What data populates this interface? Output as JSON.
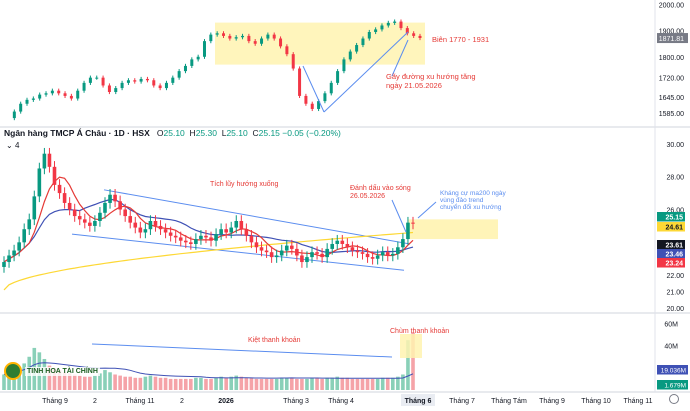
{
  "header": {
    "symbol": "Ngân hàng TMCP Á Châu · 1D · HSX",
    "o_label": "O",
    "o_value": "25.10",
    "h_label": "H",
    "h_value": "25.30",
    "l_label": "L",
    "l_value": "25.10",
    "c_label": "C",
    "c_value": "25.15",
    "change": "−0.05 (−0.20%)",
    "collapse_label": "4"
  },
  "logo": {
    "text": "TINH HOA TÀI CHÍNH"
  },
  "colors": {
    "up": "#089981",
    "down": "#f23645",
    "ma_short": "#e53935",
    "ma_mid": "#3f51b5",
    "ma_long": "#fdd835",
    "zone": "#fff3b0",
    "trend": "#5b8def"
  },
  "chart_data": [
    {
      "type": "line",
      "panel": "overview (VNINDEX)",
      "y_ticks": [
        "2000.00",
        "1900.00",
        "1871.81",
        "1800.00",
        "1720.00",
        "1645.00",
        "1585.00"
      ],
      "last_price": "1871.81",
      "ylim": [
        1550,
        2010
      ],
      "points": [
        1565,
        1590,
        1620,
        1635,
        1640,
        1655,
        1660,
        1670,
        1660,
        1650,
        1640,
        1670,
        1700,
        1720,
        1720,
        1690,
        1665,
        1680,
        1700,
        1710,
        1705,
        1715,
        1710,
        1690,
        1680,
        1700,
        1720,
        1745,
        1765,
        1790,
        1800,
        1860,
        1885,
        1890,
        1880,
        1870,
        1875,
        1880,
        1860,
        1850,
        1870,
        1885,
        1870,
        1840,
        1810,
        1755,
        1650,
        1620,
        1600,
        1630,
        1660,
        1700,
        1745,
        1790,
        1820,
        1845,
        1870,
        1895,
        1905,
        1920,
        1930,
        1935,
        1910,
        1890,
        1880,
        1872
      ],
      "annotations": [
        {
          "text": "Biên 1770 - 1931",
          "color": "#e53935"
        },
        {
          "text": "Gãy đường xu hướng tăng",
          "color": "#e53935"
        },
        {
          "text": "ngày 21.05.2026",
          "color": "#e53935"
        }
      ],
      "zone": [
        1770,
        1931
      ]
    },
    {
      "type": "candlestick",
      "panel": "price (ACB)",
      "y_ticks": [
        "30.00",
        "28.00",
        "26.00",
        "24.00",
        "22.00",
        "21.00",
        "20.00"
      ],
      "price_labels": [
        {
          "value": "25.15",
          "color": "#089981"
        },
        {
          "value": "24.61",
          "color": "#fdd835"
        },
        {
          "value": "23.61",
          "color": "#131722"
        },
        {
          "value": "23.46",
          "color": "#3f51b5"
        },
        {
          "value": "23.24",
          "color": "#f23645"
        }
      ],
      "ylim": [
        20.0,
        30.6
      ],
      "closes": [
        22.8,
        23.2,
        23.5,
        24.0,
        24.8,
        25.4,
        26.8,
        28.5,
        29.4,
        28.6,
        27.5,
        27.0,
        26.4,
        26.0,
        25.6,
        25.4,
        25.2,
        25.0,
        25.3,
        25.8,
        26.4,
        26.9,
        26.5,
        26.0,
        25.6,
        25.2,
        24.9,
        24.6,
        24.8,
        25.3,
        25.0,
        24.8,
        24.6,
        24.4,
        24.3,
        24.1,
        24.0,
        23.9,
        24.2,
        24.4,
        24.3,
        24.1,
        24.5,
        24.8,
        24.6,
        24.9,
        25.3,
        24.8,
        24.4,
        24.0,
        23.7,
        23.5,
        23.4,
        23.1,
        23.2,
        23.5,
        23.8,
        23.6,
        23.2,
        22.8,
        23.1,
        23.4,
        23.3,
        23.1,
        23.6,
        23.9,
        24.1,
        23.9,
        23.7,
        23.5,
        23.4,
        23.3,
        23.1,
        23.0,
        23.2,
        23.4,
        23.2,
        23.3,
        23.7,
        24.2,
        25.2,
        25.15
      ],
      "annotations": [
        {
          "text": "Tích lũy hướng xuống",
          "color": "#e53935"
        },
        {
          "text": "Đánh dấu vào sóng",
          "color": "#e53935"
        },
        {
          "text": "26.05.2026",
          "color": "#e53935"
        },
        {
          "text": "Kháng cự ma200 ngày",
          "color": "#5b8def"
        },
        {
          "text": "vùng đảo trend",
          "color": "#5b8def"
        },
        {
          "text": "chuyển đổi xu hướng",
          "color": "#5b8def"
        }
      ]
    },
    {
      "type": "bar",
      "panel": "volume",
      "y_ticks": [
        "60M",
        "40M"
      ],
      "volume_labels": [
        {
          "value": "19.036M",
          "color": "#3f51b5"
        },
        {
          "value": "1.679M",
          "color": "#089981"
        }
      ],
      "ylim": [
        0,
        65
      ],
      "values": [
        14,
        18,
        16,
        20,
        24,
        30,
        38,
        34,
        28,
        22,
        20,
        18,
        16,
        15,
        14,
        13,
        12,
        12,
        13,
        15,
        18,
        16,
        14,
        13,
        12,
        12,
        11,
        11,
        12,
        13,
        12,
        11,
        11,
        10,
        10,
        10,
        10,
        10,
        11,
        11,
        10,
        10,
        11,
        12,
        11,
        12,
        13,
        12,
        11,
        11,
        10,
        10,
        10,
        10,
        10,
        11,
        11,
        11,
        10,
        10,
        10,
        11,
        11,
        10,
        11,
        11,
        12,
        11,
        11,
        10,
        10,
        10,
        10,
        10,
        10,
        11,
        11,
        11,
        12,
        14,
        45,
        52
      ],
      "annotations": [
        {
          "text": "Kiệt thanh khoản",
          "color": "#e53935"
        },
        {
          "text": "Chùm thanh khoản",
          "color": "#e53935"
        }
      ]
    }
  ],
  "x_axis": [
    "Tháng 9",
    "2",
    "Tháng 11",
    "2",
    "2026",
    "Tháng 3",
    "Tháng 4",
    "Tháng 6",
    "Tháng 7",
    "Tháng Tám",
    "Tháng 9",
    "Tháng 10",
    "Tháng 11"
  ]
}
